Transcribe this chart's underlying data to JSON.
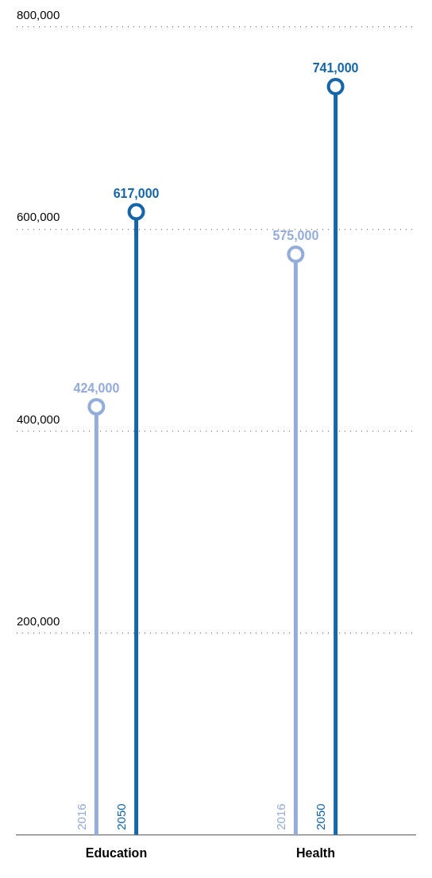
{
  "chart_data": {
    "type": "lollipop",
    "categories": [
      "Education",
      "Health"
    ],
    "series": [
      {
        "name": "2016",
        "color": "#93acd9",
        "values": [
          424000,
          575000
        ],
        "value_labels": [
          "424,000",
          "575,000"
        ]
      },
      {
        "name": "2050",
        "color": "#1565a8",
        "values": [
          617000,
          741000
        ],
        "value_labels": [
          "617,000",
          "741,000"
        ]
      }
    ],
    "ylim": [
      0,
      800000
    ],
    "yticks": [
      {
        "value": 200000,
        "label": "200,000"
      },
      {
        "value": 400000,
        "label": "400,000"
      },
      {
        "value": 600000,
        "label": "600,000"
      },
      {
        "value": 800000,
        "label": "800,000"
      }
    ],
    "grid": "y",
    "legend": false,
    "marker": "circle"
  }
}
